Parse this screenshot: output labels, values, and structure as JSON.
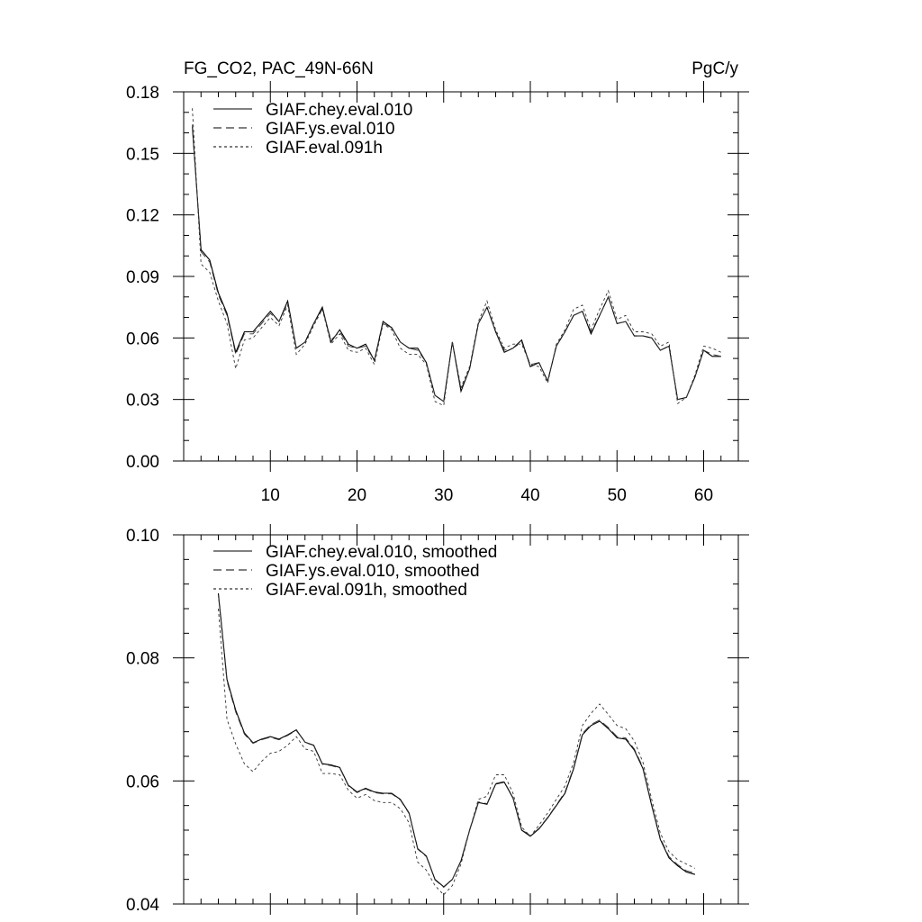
{
  "chart_data": [
    {
      "type": "line",
      "title": "FG_CO2, PAC_49N-66N",
      "units": "PgC/y",
      "xlim": [
        0,
        64
      ],
      "ylim": [
        0.0,
        0.18
      ],
      "x_ticks": [
        10,
        20,
        30,
        40,
        50,
        60
      ],
      "y_ticks": [
        "0.00",
        "0.03",
        "0.06",
        "0.09",
        "0.12",
        "0.15",
        "0.18"
      ],
      "legend_position": "top-left",
      "series": [
        {
          "name": "GIAF.chey.eval.010",
          "dash": "solid",
          "x_start": 1,
          "values": [
            0.163,
            0.103,
            0.098,
            0.082,
            0.072,
            0.053,
            0.063,
            0.063,
            0.068,
            0.073,
            0.068,
            0.078,
            0.055,
            0.058,
            0.067,
            0.075,
            0.058,
            0.064,
            0.057,
            0.055,
            0.057,
            0.049,
            0.068,
            0.065,
            0.058,
            0.055,
            0.055,
            0.048,
            0.032,
            0.029,
            0.058,
            0.034,
            0.045,
            0.067,
            0.075,
            0.063,
            0.053,
            0.055,
            0.059,
            0.046,
            0.048,
            0.039,
            0.056,
            0.063,
            0.071,
            0.073,
            0.062,
            0.071,
            0.08,
            0.067,
            0.068,
            0.061,
            0.061,
            0.06,
            0.054,
            0.056,
            0.03,
            0.031,
            0.041,
            0.054,
            0.051,
            0.051
          ]
        },
        {
          "name": "GIAF.ys.eval.010",
          "dash": "long-dash",
          "x_start": 1,
          "values": [
            0.164,
            0.102,
            0.097,
            0.081,
            0.071,
            0.052,
            0.062,
            0.062,
            0.067,
            0.072,
            0.068,
            0.077,
            0.055,
            0.058,
            0.067,
            0.074,
            0.059,
            0.063,
            0.056,
            0.055,
            0.056,
            0.049,
            0.067,
            0.065,
            0.058,
            0.055,
            0.054,
            0.048,
            0.032,
            0.029,
            0.058,
            0.035,
            0.045,
            0.067,
            0.075,
            0.063,
            0.054,
            0.055,
            0.058,
            0.047,
            0.048,
            0.039,
            0.056,
            0.063,
            0.071,
            0.073,
            0.063,
            0.071,
            0.08,
            0.067,
            0.068,
            0.061,
            0.061,
            0.06,
            0.054,
            0.056,
            0.03,
            0.031,
            0.041,
            0.054,
            0.052,
            0.051
          ]
        },
        {
          "name": "GIAF.eval.091h",
          "dash": "short-dash",
          "x_start": 1,
          "values": [
            0.172,
            0.096,
            0.092,
            0.078,
            0.067,
            0.045,
            0.059,
            0.06,
            0.065,
            0.07,
            0.066,
            0.076,
            0.052,
            0.057,
            0.066,
            0.074,
            0.057,
            0.062,
            0.054,
            0.053,
            0.055,
            0.047,
            0.067,
            0.064,
            0.055,
            0.052,
            0.052,
            0.047,
            0.029,
            0.027,
            0.058,
            0.036,
            0.046,
            0.068,
            0.078,
            0.064,
            0.055,
            0.057,
            0.057,
            0.047,
            0.046,
            0.038,
            0.057,
            0.064,
            0.074,
            0.076,
            0.064,
            0.074,
            0.083,
            0.069,
            0.071,
            0.063,
            0.063,
            0.062,
            0.056,
            0.058,
            0.028,
            0.031,
            0.042,
            0.056,
            0.055,
            0.053
          ]
        }
      ]
    },
    {
      "type": "line",
      "xlim": [
        0,
        64
      ],
      "ylim": [
        0.04,
        0.1
      ],
      "x_ticks": [
        10,
        20,
        30,
        40,
        50,
        60
      ],
      "y_ticks": [
        "0.04",
        "0.06",
        "0.08",
        "0.10"
      ],
      "legend_position": "top-left",
      "series": [
        {
          "name": "GIAF.chey.eval.010, smoothed",
          "dash": "solid",
          "x_start": 4,
          "values": [
            0.0905,
            0.0765,
            0.0715,
            0.0678,
            0.0662,
            0.0668,
            0.0672,
            0.0668,
            0.0675,
            0.0683,
            0.0663,
            0.0658,
            0.0628,
            0.0626,
            0.0622,
            0.0593,
            0.0582,
            0.0588,
            0.0582,
            0.058,
            0.058,
            0.057,
            0.0548,
            0.049,
            0.0478,
            0.044,
            0.0428,
            0.044,
            0.047,
            0.052,
            0.0565,
            0.0562,
            0.0595,
            0.0598,
            0.0572,
            0.052,
            0.051,
            0.0522,
            0.054,
            0.056,
            0.058,
            0.062,
            0.0675,
            0.069,
            0.0697,
            0.0685,
            0.067,
            0.0668,
            0.065,
            0.062,
            0.056,
            0.0505,
            0.0475,
            0.0462,
            0.0452,
            0.0448
          ]
        },
        {
          "name": "GIAF.ys.eval.010, smoothed",
          "dash": "long-dash",
          "x_start": 4,
          "values": [
            0.0902,
            0.0762,
            0.0712,
            0.0676,
            0.0661,
            0.0667,
            0.0671,
            0.0667,
            0.0674,
            0.0682,
            0.0663,
            0.0657,
            0.0627,
            0.0625,
            0.0621,
            0.0592,
            0.0581,
            0.0587,
            0.0581,
            0.0579,
            0.0579,
            0.0569,
            0.0547,
            0.0489,
            0.0477,
            0.0439,
            0.0427,
            0.044,
            0.0471,
            0.0521,
            0.0566,
            0.0563,
            0.0596,
            0.0599,
            0.0573,
            0.0521,
            0.0511,
            0.0523,
            0.0541,
            0.0561,
            0.0582,
            0.0622,
            0.0677,
            0.0692,
            0.0699,
            0.0687,
            0.0672,
            0.067,
            0.0652,
            0.0622,
            0.0562,
            0.0507,
            0.0477,
            0.0464,
            0.0454,
            0.045
          ]
        },
        {
          "name": "GIAF.eval.091h, smoothed",
          "dash": "short-dash",
          "x_start": 4,
          "values": [
            0.088,
            0.07,
            0.066,
            0.0628,
            0.0615,
            0.0632,
            0.0645,
            0.0648,
            0.0658,
            0.0672,
            0.0652,
            0.0648,
            0.0612,
            0.0612,
            0.061,
            0.0585,
            0.0572,
            0.0578,
            0.0568,
            0.0565,
            0.0565,
            0.0555,
            0.0532,
            0.0468,
            0.0455,
            0.043,
            0.0415,
            0.043,
            0.0465,
            0.052,
            0.057,
            0.0575,
            0.061,
            0.061,
            0.058,
            0.0525,
            0.051,
            0.0528,
            0.0548,
            0.057,
            0.0592,
            0.063,
            0.069,
            0.071,
            0.0725,
            0.0708,
            0.069,
            0.0685,
            0.0665,
            0.063,
            0.057,
            0.0515,
            0.0485,
            0.0472,
            0.0465,
            0.0458
          ]
        }
      ]
    }
  ]
}
